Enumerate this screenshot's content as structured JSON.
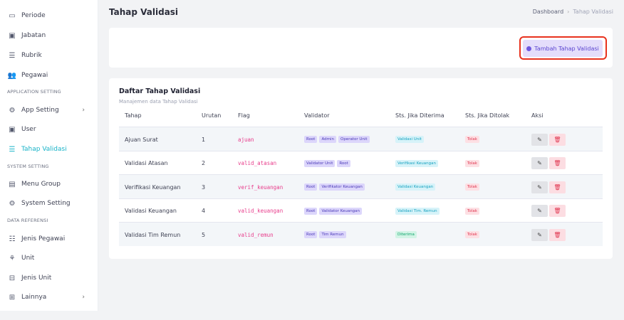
{
  "sidebar": {
    "items": [
      {
        "label": "Periode",
        "icon": "calendar-icon"
      },
      {
        "label": "Jabatan",
        "icon": "id-badge-icon"
      },
      {
        "label": "Rubrik",
        "icon": "list-card-icon"
      },
      {
        "label": "Pegawai",
        "icon": "users-icon"
      },
      {
        "label": "App Setting",
        "icon": "gear-icon"
      },
      {
        "label": "User",
        "icon": "user-badge-icon"
      },
      {
        "label": "Tahap Validasi",
        "icon": "list-icon"
      },
      {
        "label": "Menu Group",
        "icon": "server-icon"
      },
      {
        "label": "System Setting",
        "icon": "cog-outline-icon"
      },
      {
        "label": "Jenis Pegawai",
        "icon": "user-list-icon"
      },
      {
        "label": "Unit",
        "icon": "sitemap-icon"
      },
      {
        "label": "Jenis Unit",
        "icon": "archive-icon"
      },
      {
        "label": "Lainnya",
        "icon": "grid-icon"
      }
    ],
    "sections": [
      "APPLICATION SETTING",
      "SYSTEM SETTING",
      "DATA REFERENSI"
    ],
    "active": "Tahap Validasi"
  },
  "header": {
    "title": "Tahap Validasi",
    "breadcrumb": [
      "Dashboard",
      "Tahap Validasi"
    ]
  },
  "toolbar": {
    "add_label": "Tambah Tahap Validasi"
  },
  "table": {
    "title": "Daftar Tahap Validasi",
    "subtitle": "Manajemen data Tahap Validasi",
    "columns": [
      "Tahap",
      "Urutan",
      "Flag",
      "Validator",
      "Sts. Jika Diterima",
      "Sts. Jika Ditolak",
      "Aksi"
    ],
    "rows": [
      {
        "tahap": "Ajuan Surat",
        "urutan": "1",
        "flag": "ajuan",
        "validator": [
          "Root",
          "Admin",
          "Operator Unit"
        ],
        "diterima": "Validasi Unit",
        "ditolak": "Tolak"
      },
      {
        "tahap": "Validasi Atasan",
        "urutan": "2",
        "flag": "valid_atasan",
        "validator": [
          "Validator Unit",
          "Root"
        ],
        "diterima": "Verifikasi Keuangan",
        "ditolak": "Tolak"
      },
      {
        "tahap": "Verifikasi Keuangan",
        "urutan": "3",
        "flag": "verif_keuangan",
        "validator": [
          "Root",
          "Verifikator Keuangan"
        ],
        "diterima": "Validasi Keuangan",
        "ditolak": "Tolak"
      },
      {
        "tahap": "Validasi Keuangan",
        "urutan": "4",
        "flag": "valid_keuangan",
        "validator": [
          "Root",
          "Validator Keuangan"
        ],
        "diterima": "Validasi Tim. Remun",
        "ditolak": "Tolak"
      },
      {
        "tahap": "Validasi Tim Remun",
        "urutan": "5",
        "flag": "valid_remun",
        "validator": [
          "Root",
          "Tim Remun"
        ],
        "diterima": "Diterima",
        "ditolak": "Tolak"
      }
    ]
  },
  "colors": {
    "accent": "#17b3c8",
    "primary_light": "#e4ddfb",
    "danger_light": "#fcdde2"
  }
}
